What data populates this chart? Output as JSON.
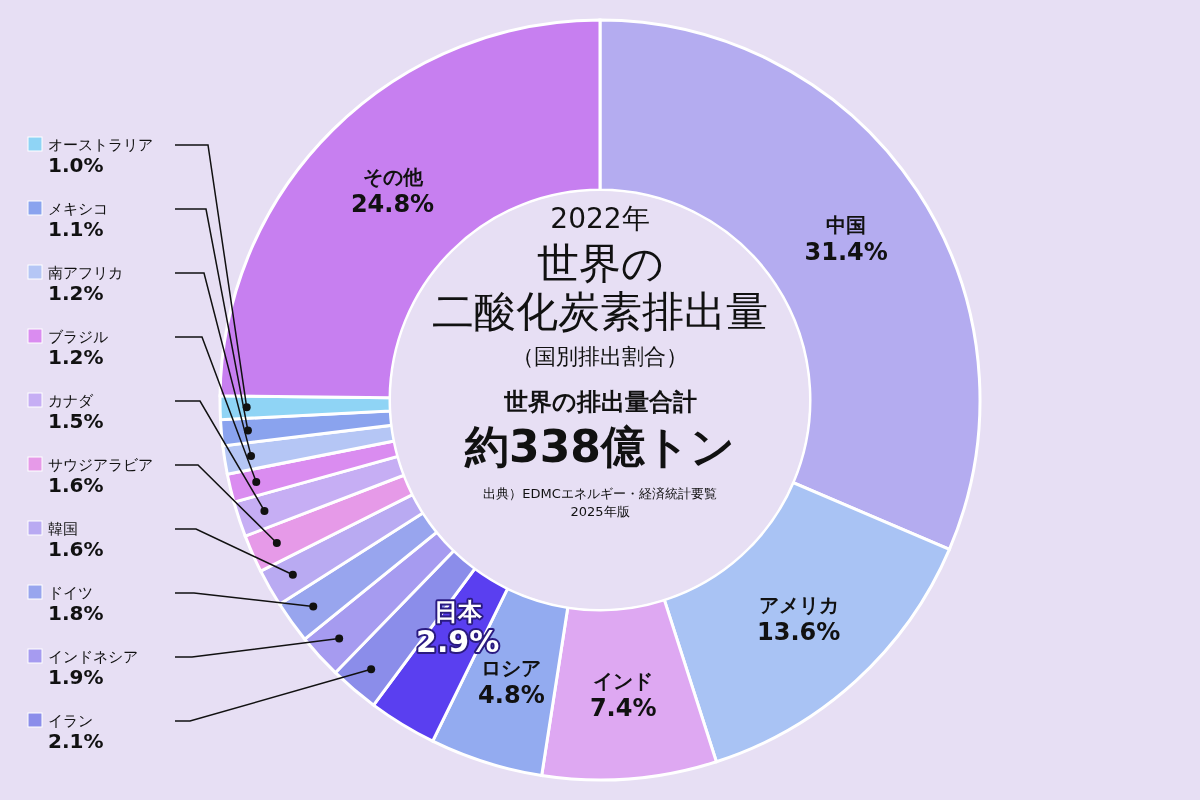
{
  "chart_data": {
    "type": "donut",
    "title": "世界の二酸化炭素排出量",
    "subtitle": "（国別排出割合）",
    "categories": [
      "中国",
      "アメリカ",
      "インド",
      "ロシア",
      "日本",
      "イラン",
      "インドネシア",
      "ドイツ",
      "韓国",
      "サウジアラビア",
      "カナダ",
      "ブラジル",
      "南アフリカ",
      "メキシコ",
      "オーストラリア",
      "その他"
    ],
    "values": [
      31.4,
      13.6,
      7.4,
      4.8,
      2.9,
      2.1,
      1.9,
      1.8,
      1.6,
      1.6,
      1.5,
      1.2,
      1.2,
      1.1,
      1.0,
      24.8
    ],
    "value_labels": [
      "31.4%",
      "13.6%",
      "7.4%",
      "4.8%",
      "2.9%",
      "2.1%",
      "1.9%",
      "1.8%",
      "1.6%",
      "1.6%",
      "1.5%",
      "1.2%",
      "1.2%",
      "1.1%",
      "1.0%",
      "24.8%"
    ],
    "colors": [
      "#b4acf0",
      "#a9c3f4",
      "#dea8f2",
      "#93abf0",
      "#5a3ff0",
      "#8b8dea",
      "#a69bf0",
      "#98a5ee",
      "#b9aaf2",
      "#e69ae8",
      "#c6aef4",
      "#da8cf0",
      "#b5c6f5",
      "#8aa3ee",
      "#8fd4f5",
      "#c77ff0"
    ],
    "legend": "left",
    "annotations": [
      "2022年",
      "世界の排出量合計約338億トン",
      "出典）EDMCエネルギー・経済統計要覧2025年版"
    ]
  }
}
